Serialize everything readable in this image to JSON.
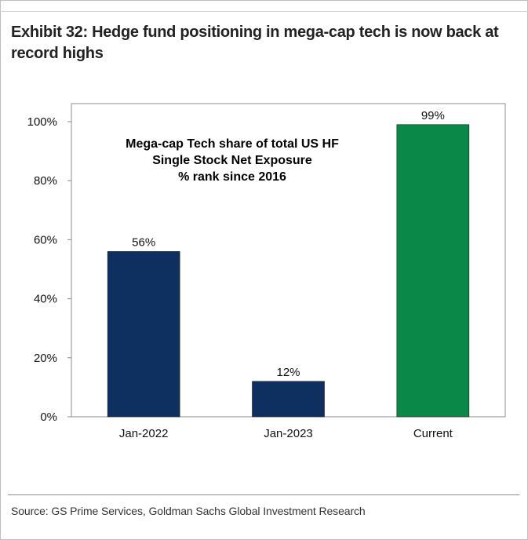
{
  "header": {
    "title": "Exhibit 32: Hedge fund positioning in mega-cap tech is now back at record highs"
  },
  "footer": {
    "source": "Source: GS Prime Services, Goldman Sachs Global Investment Research"
  },
  "chart_data": {
    "type": "bar",
    "categories": [
      "Jan-2022",
      "Jan-2023",
      "Current"
    ],
    "values": [
      56,
      12,
      99
    ],
    "data_labels": [
      "56%",
      "12%",
      "99%"
    ],
    "bar_colors": [
      "#0d3060",
      "#0d3060",
      "#0a8848"
    ],
    "title": "",
    "annotation": [
      "Mega-cap Tech share of total US HF",
      "Single Stock Net Exposure",
      "% rank since 2016"
    ],
    "xlabel": "",
    "ylabel": "",
    "ylim": [
      0,
      100
    ],
    "yticks": [
      0,
      20,
      40,
      60,
      80,
      100
    ],
    "ytick_labels": [
      "0%",
      "20%",
      "40%",
      "60%",
      "80%",
      "100%"
    ],
    "grid": false,
    "legend": "none"
  }
}
